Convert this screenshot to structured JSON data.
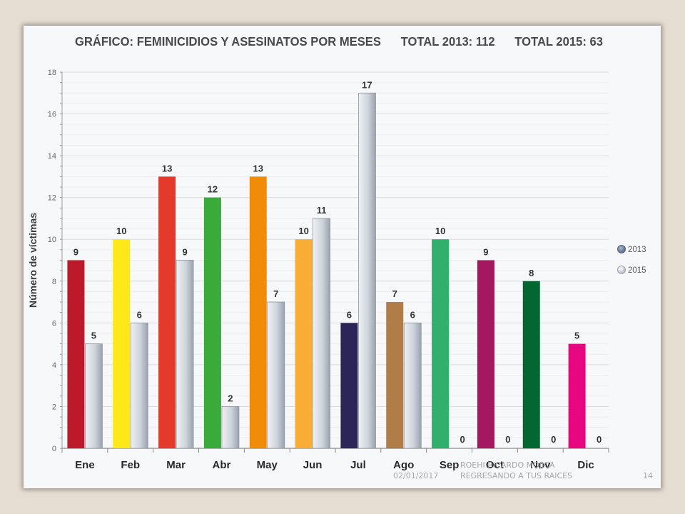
{
  "chart_data": {
    "type": "bar",
    "title": "GRÁFICO: FEMINICIDIOS Y ASESINATOS POR MESES      TOTAL 2013: 112      TOTAL 2015: 63",
    "xlabel": "",
    "ylabel": "Número de víctimas",
    "ylim": [
      0,
      18
    ],
    "yticks": [
      "0",
      "2",
      "4",
      "6",
      "8",
      "10",
      "12",
      "14",
      "16",
      "18"
    ],
    "categories": [
      "Ene",
      "Feb",
      "Mar",
      "Abr",
      "May",
      "Jun",
      "Jul",
      "Ago",
      "Sep",
      "Oct",
      "Nov",
      "Dic"
    ],
    "series": [
      {
        "name": "2013",
        "values": [
          9,
          10,
          13,
          12,
          13,
          10,
          6,
          7,
          10,
          9,
          8,
          5
        ],
        "colors": [
          "#bc1a2a",
          "#ffe818",
          "#e33a2b",
          "#3aab3a",
          "#f08c08",
          "#f7ad36",
          "#2b2558",
          "#b07c48",
          "#30b06a",
          "#a3185e",
          "#046732",
          "#e6077e"
        ]
      },
      {
        "name": "2015",
        "values": [
          5,
          6,
          9,
          2,
          7,
          11,
          17,
          6,
          0,
          0,
          0,
          0
        ],
        "color": "#cfd4dc"
      }
    ],
    "legend_position": "right",
    "legend_colors": [
      "#6e8099",
      "#cfd4dc"
    ],
    "grid": true
  },
  "footer": {
    "date": "02/01/2017",
    "author": "ROEHI RICARDO MOJICA",
    "subtitle": "REGRESANDO  A TUS RAICES",
    "page": "14"
  }
}
